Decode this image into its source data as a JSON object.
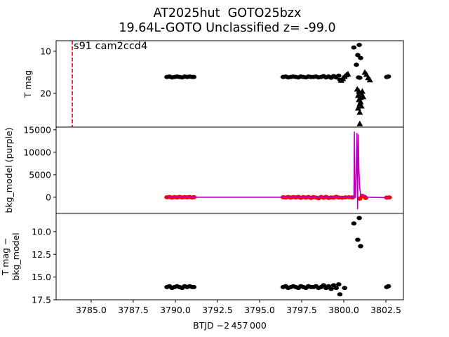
{
  "chart_data": {
    "type": "scatter",
    "title": [
      "AT2025hut  GOTO25bzx",
      "19.64L-GOTO Unclassified z= -99.0"
    ],
    "xlabel": "BTJD −2 457 000",
    "xlim": [
      3782.92,
      3803.54
    ],
    "xticks": [
      3785.0,
      3787.5,
      3790.0,
      3792.5,
      3795.0,
      3797.5,
      3800.0,
      3802.5
    ],
    "xtick_labels": [
      "3785.0",
      "3787.5",
      "3790.0",
      "3792.5",
      "3795.0",
      "3797.5",
      "3800.0",
      "3802.5"
    ],
    "panels": [
      {
        "ylabel": [
          "T mag"
        ],
        "ylim": [
          28,
          7.5
        ],
        "inverted": true,
        "yticks": [
          10,
          20
        ],
        "ytick_labels": [
          "10",
          "20"
        ],
        "annotation": {
          "text": "s91 cam2ccd4",
          "vline_x": 3783.88,
          "vline_color": "#ff0000"
        },
        "series": [
          {
            "name": "detections",
            "marker": "circle",
            "color": "#000000",
            "x": [
              3789.5,
              3789.65,
              3789.8,
              3789.95,
              3790.1,
              3790.25,
              3790.4,
              3790.55,
              3790.7,
              3790.85,
              3791.0,
              3791.1,
              3796.4,
              3796.55,
              3796.7,
              3796.85,
              3797.0,
              3797.15,
              3797.3,
              3797.45,
              3797.6,
              3797.75,
              3797.9,
              3798.05,
              3798.2,
              3798.35,
              3798.5,
              3798.65,
              3798.8,
              3798.95,
              3799.1,
              3799.25,
              3799.4,
              3799.55,
              3799.7,
              3799.77,
              3800.05,
              3802.55,
              3802.65,
              3800.6,
              3800.92,
              3800.83,
              3801.0,
              3800.75,
              3800.88,
              3800.95
            ],
            "y": [
              16.1,
              16.0,
              16.2,
              16.1,
              16.0,
              16.1,
              16.2,
              16.0,
              16.1,
              16.0,
              16.1,
              16.1,
              16.1,
              16.0,
              16.2,
              16.1,
              16.0,
              16.1,
              16.2,
              16.0,
              16.1,
              16.2,
              16.0,
              16.1,
              16.1,
              16.0,
              16.2,
              16.1,
              15.9,
              16.2,
              16.0,
              16.3,
              15.9,
              16.2,
              15.8,
              16.8,
              16.1,
              16.1,
              16.0,
              9.1,
              8.5,
              10.9,
              11.6,
              13.2,
              16.2,
              16.3
            ]
          },
          {
            "name": "upper limits",
            "marker": "triangle",
            "color": "#000000",
            "x": [
              3799.85,
              3799.95,
              3800.05,
              3800.15,
              3800.25,
              3800.8,
              3800.85,
              3800.9,
              3800.95,
              3801.0,
              3801.05,
              3801.1,
              3801.15,
              3800.85,
              3800.95,
              3801.05,
              3800.9,
              3801.0,
              3801.25,
              3801.35,
              3801.45,
              3801.55,
              3800.95
            ],
            "y": [
              16.9,
              16.5,
              16.0,
              15.6,
              15.4,
              19.0,
              20.5,
              21.5,
              22.5,
              21.0,
              20.0,
              19.5,
              20.8,
              23.5,
              24.5,
              23.0,
              19.5,
              22.0,
              15.0,
              15.5,
              16.3,
              16.8,
              27.2
            ]
          }
        ]
      },
      {
        "ylabel": [
          "bkg_model (purple)"
        ],
        "ylim": [
          -3600,
          15600
        ],
        "inverted": false,
        "yticks": [
          0,
          5000,
          10000,
          15000
        ],
        "ytick_labels": [
          "0",
          "5000",
          "10000",
          "15000"
        ],
        "series": [
          {
            "name": "flux",
            "marker": "circle",
            "color": "#ff0000",
            "x": [
              3789.5,
              3789.65,
              3789.8,
              3789.95,
              3790.1,
              3790.25,
              3790.4,
              3790.55,
              3790.7,
              3790.85,
              3791.0,
              3791.1,
              3796.4,
              3796.55,
              3796.7,
              3796.85,
              3797.0,
              3797.15,
              3797.3,
              3797.45,
              3797.6,
              3797.75,
              3797.9,
              3798.05,
              3798.2,
              3798.35,
              3798.5,
              3798.65,
              3798.8,
              3798.95,
              3799.1,
              3799.25,
              3799.4,
              3799.55,
              3799.7,
              3799.9,
              3800.1,
              3800.3,
              3800.5,
              3800.95,
              3801.1,
              3801.3,
              3802.55,
              3802.7
            ],
            "y": [
              0,
              50,
              -80,
              30,
              -40,
              60,
              -50,
              20,
              -30,
              40,
              -60,
              10,
              0,
              -60,
              40,
              -90,
              30,
              -50,
              60,
              -120,
              20,
              -80,
              50,
              -150,
              30,
              -60,
              -200,
              40,
              -100,
              60,
              -150,
              -40,
              -80,
              90,
              -60,
              -100,
              -30,
              0,
              -50,
              -300,
              300,
              -150,
              -80,
              -40
            ]
          },
          {
            "name": "bkg_model",
            "marker": "line",
            "color": "#bf00bf",
            "x": [
              3789.5,
              3800.55,
              3800.6,
              3800.63,
              3800.66,
              3800.7,
              3800.78,
              3800.82,
              3800.86,
              3800.9,
              3800.95,
              3801.0,
              3801.05,
              3801.3,
              3801.4,
              3802.75
            ],
            "y": [
              0,
              0,
              -200,
              14600,
              -100,
              0,
              14300,
              -2700,
              14000,
              6000,
              2000,
              600,
              400,
              400,
              0,
              -100
            ]
          }
        ]
      },
      {
        "ylabel": [
          "T mag −",
          "bkg_model"
        ],
        "ylim": [
          17.5,
          8.0
        ],
        "inverted": true,
        "yticks": [
          10.0,
          12.5,
          15.0,
          17.5
        ],
        "ytick_labels": [
          "10.0",
          "12.5",
          "15.0",
          "17.5"
        ],
        "series": [
          {
            "name": "T mag - bkg_model",
            "marker": "circle",
            "color": "#000000",
            "x": [
              3789.5,
              3789.65,
              3789.8,
              3789.95,
              3790.1,
              3790.25,
              3790.4,
              3790.55,
              3790.7,
              3790.85,
              3791.0,
              3791.1,
              3796.4,
              3796.55,
              3796.7,
              3796.85,
              3797.0,
              3797.15,
              3797.3,
              3797.45,
              3797.6,
              3797.75,
              3797.9,
              3798.05,
              3798.2,
              3798.35,
              3798.5,
              3798.65,
              3798.8,
              3798.95,
              3799.1,
              3799.25,
              3799.4,
              3799.55,
              3799.7,
              3799.77,
              3800.05,
              3802.55,
              3802.65,
              3800.6,
              3800.92,
              3800.83,
              3801.0
            ],
            "y": [
              16.1,
              16.0,
              16.2,
              16.1,
              16.0,
              16.1,
              16.2,
              16.0,
              16.1,
              16.0,
              16.1,
              16.1,
              16.1,
              16.0,
              16.2,
              16.1,
              16.0,
              16.1,
              16.2,
              16.0,
              16.1,
              16.2,
              16.0,
              16.1,
              16.1,
              16.0,
              16.2,
              16.1,
              15.9,
              16.2,
              16.0,
              16.3,
              15.9,
              16.2,
              15.8,
              16.9,
              16.2,
              16.1,
              16.0,
              9.1,
              8.5,
              10.9,
              11.6
            ]
          }
        ]
      }
    ]
  }
}
